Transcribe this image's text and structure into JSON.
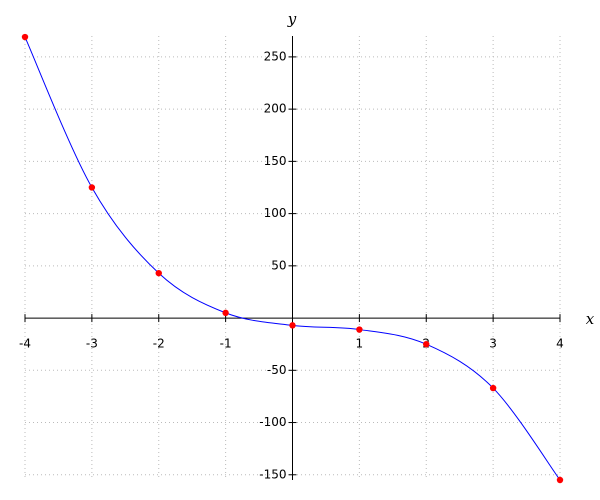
{
  "chart_data": {
    "type": "line",
    "x_label": "x",
    "y_label": "y",
    "x": [
      -4,
      -3,
      -2,
      -1,
      0,
      1,
      2,
      3,
      4
    ],
    "values": [
      269,
      125,
      43,
      5,
      -7,
      -11,
      -25,
      -67,
      -155
    ],
    "color": "#0000ff",
    "marker_color": "#ff0000",
    "xlim": [
      -4,
      4
    ],
    "xticks": [
      -4,
      -3,
      -2,
      -1,
      1,
      2,
      3,
      4
    ],
    "ylim": [
      -155,
      270
    ],
    "yticks": [
      -150,
      -100,
      -50,
      50,
      100,
      150,
      200,
      250
    ],
    "grid": true
  }
}
